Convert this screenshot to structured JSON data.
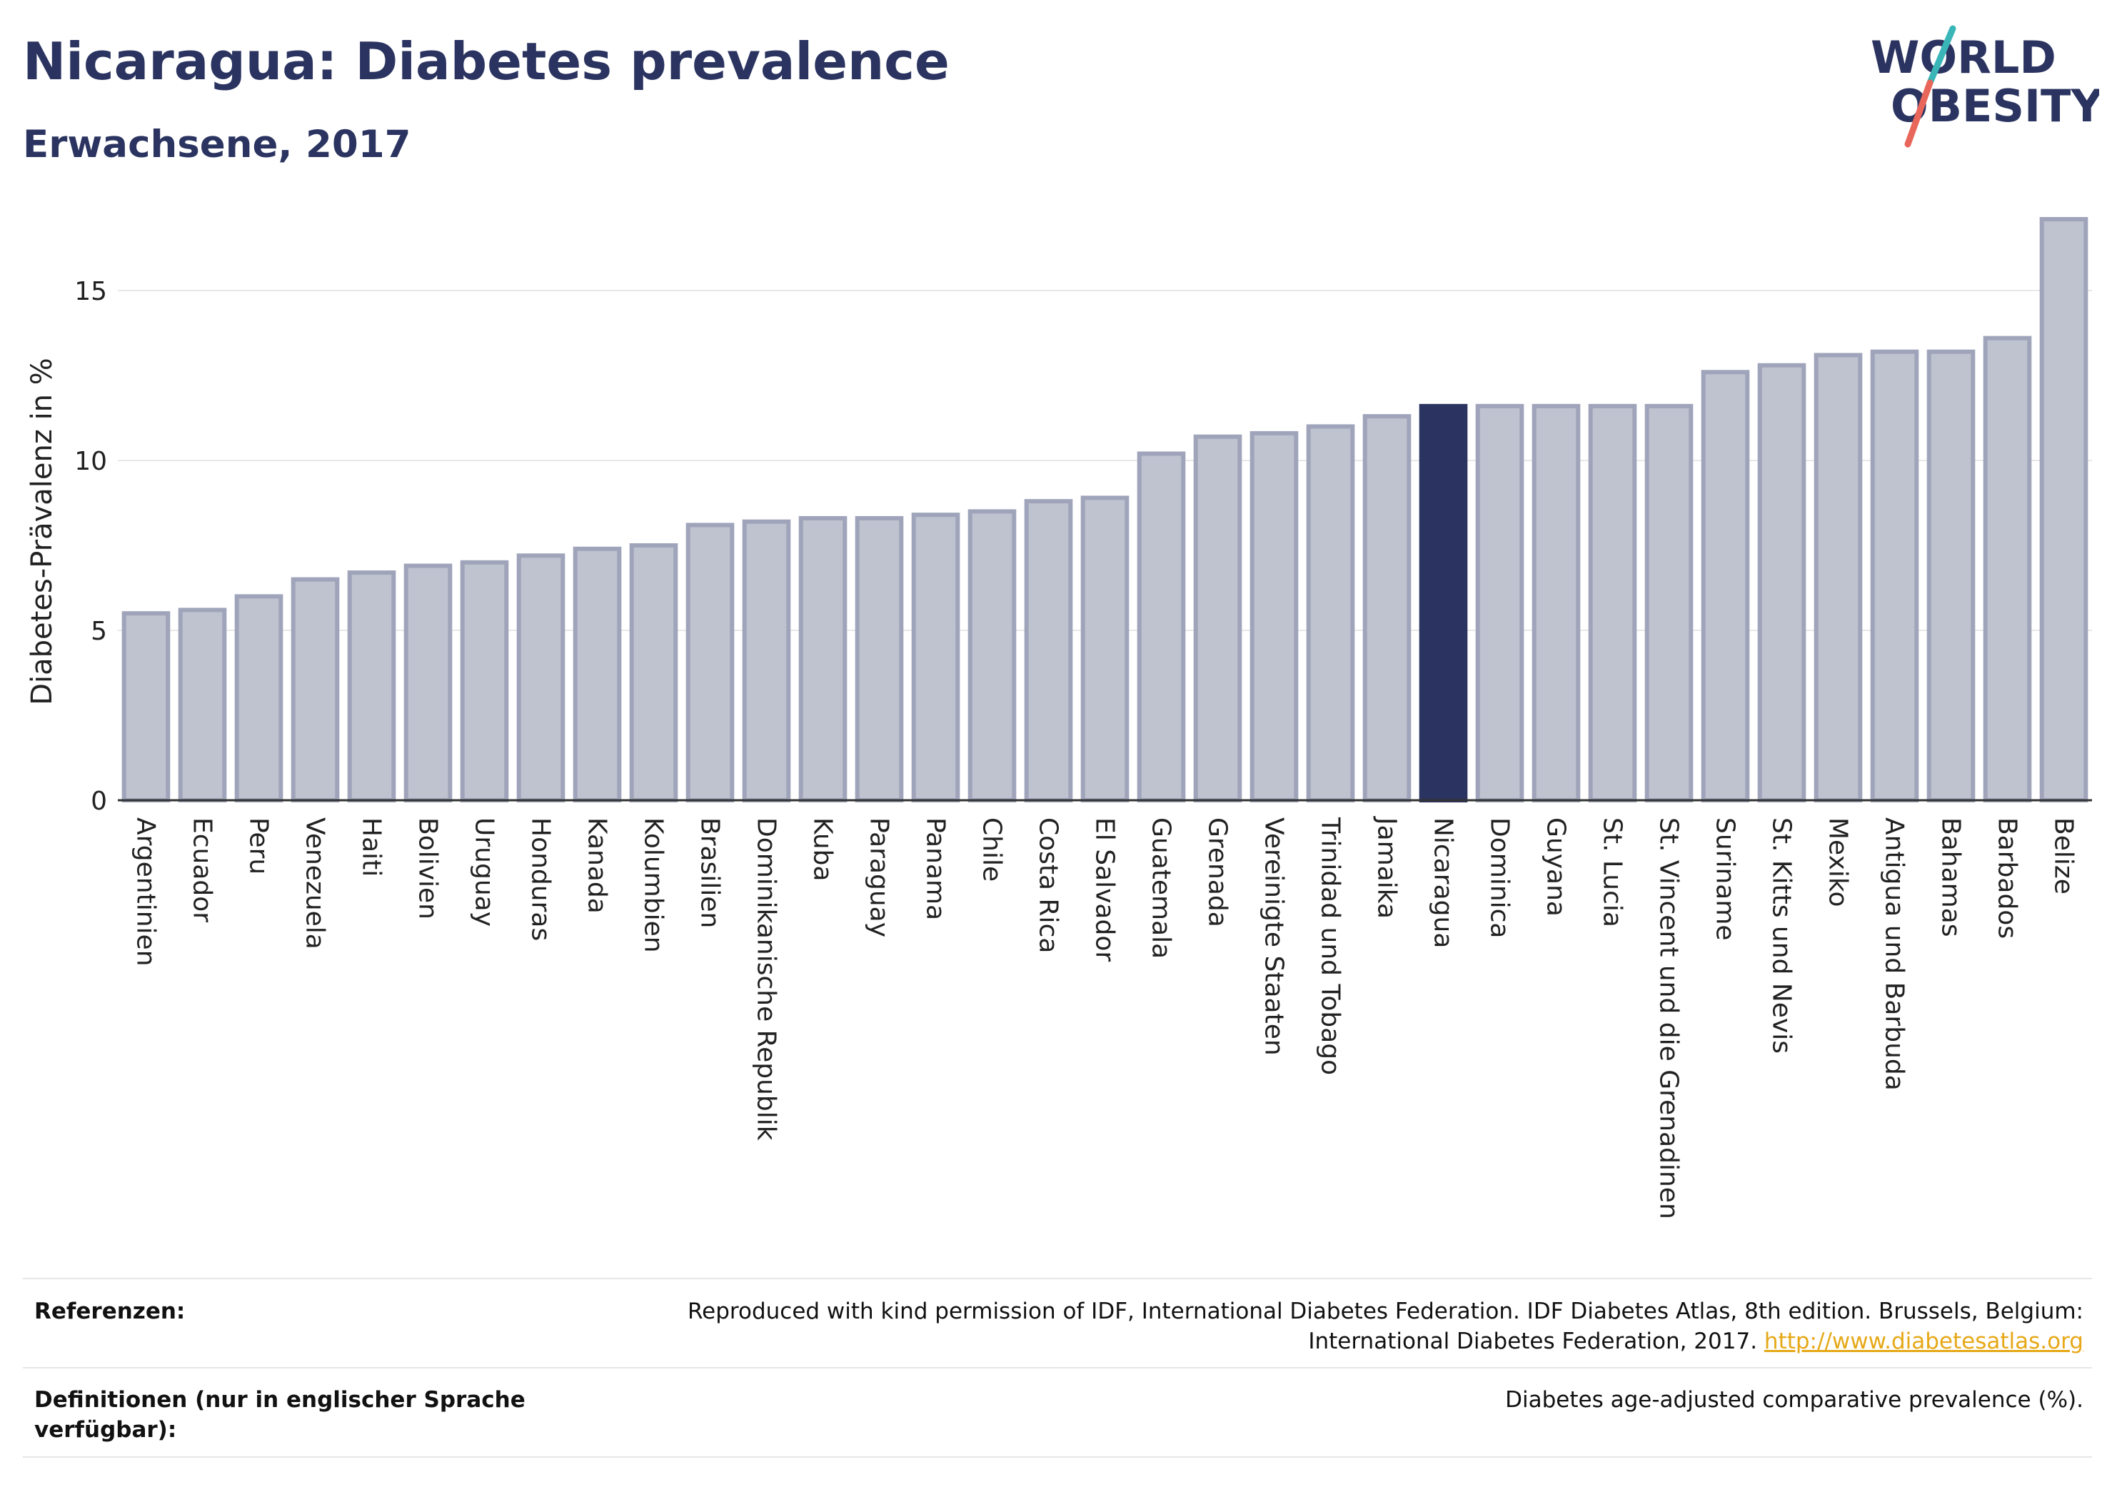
{
  "title": "Nicaragua: Diabetes prevalence",
  "subtitle": "Erwachsene, 2017",
  "logo": {
    "line1": "WORLD",
    "line2": "OBESITY"
  },
  "colors": {
    "highlight": "#2b3460",
    "bar_fill": "#bfc2cf",
    "bar_stroke": "#9fa4ba",
    "grid": "#e8e8e8"
  },
  "chart_data": {
    "type": "bar",
    "ylabel": "Diabetes-Prävalenz in %",
    "xlabel": "",
    "ylim": [
      0,
      17.5
    ],
    "yticks": [
      0,
      5,
      10,
      15
    ],
    "grid": true,
    "highlight": "Nicaragua",
    "categories": [
      "Argentinien",
      "Ecuador",
      "Peru",
      "Venezuela",
      "Haiti",
      "Bolivien",
      "Uruguay",
      "Honduras",
      "Kanada",
      "Kolumbien",
      "Brasilien",
      "Dominikanische Republik",
      "Kuba",
      "Paraguay",
      "Panama",
      "Chile",
      "Costa Rica",
      "El Salvador",
      "Guatemala",
      "Grenada",
      "Vereinigte Staaten",
      "Trinidad und Tobago",
      "Jamaika",
      "Nicaragua",
      "Dominica",
      "Guyana",
      "St. Lucia",
      "St. Vincent und die Grenadinen",
      "Suriname",
      "St. Kitts und Nevis",
      "Mexiko",
      "Antigua und Barbuda",
      "Bahamas",
      "Barbados",
      "Belize"
    ],
    "values": [
      5.5,
      5.6,
      6.0,
      6.5,
      6.7,
      6.9,
      7.0,
      7.2,
      7.4,
      7.5,
      8.1,
      8.2,
      8.3,
      8.3,
      8.4,
      8.5,
      8.8,
      8.9,
      10.2,
      10.7,
      10.8,
      11.0,
      11.3,
      11.6,
      11.6,
      11.6,
      11.6,
      11.6,
      12.6,
      12.8,
      13.1,
      13.2,
      13.2,
      13.6,
      17.1
    ]
  },
  "footer": {
    "references_label": "Referenzen:",
    "references_text": "Reproduced with kind permission of IDF, International Diabetes Federation. IDF Diabetes Atlas, 8th edition. Brussels, Belgium:",
    "references_text2": "International Diabetes Federation, 2017.",
    "references_link": "http://www.diabetesatlas.org",
    "definitions_label": "Definitionen (nur in englischer Sprache verfügbar):",
    "definitions_text": "Diabetes age-adjusted comparative prevalence (%)."
  }
}
